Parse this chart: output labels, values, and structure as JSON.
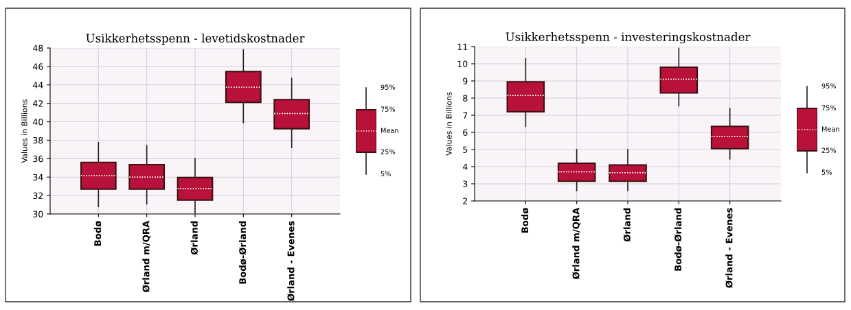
{
  "chart_data": [
    {
      "type": "box",
      "title": "Usikkerhetsspenn - levetidskostnader",
      "ylabel": "Values in Billions",
      "categories": [
        "Bodø",
        "Ørland m/QRA",
        "Ørland",
        "Bodø-Ørland",
        "Ørland - Evenes"
      ],
      "ylim": [
        30,
        48
      ],
      "yticks": [
        30,
        32,
        34,
        36,
        38,
        40,
        42,
        44,
        46,
        48
      ],
      "grid": true,
      "color": "#b8123a",
      "boxes": [
        {
          "low": 30.8,
          "q1": 32.7,
          "median": 34.15,
          "mean": 34.15,
          "q3": 35.6,
          "high": 37.75
        },
        {
          "low": 31.1,
          "q1": 32.7,
          "median": 34.0,
          "mean": 34.0,
          "q3": 35.35,
          "high": 37.4
        },
        {
          "low": 30.1,
          "q1": 31.5,
          "median": 32.75,
          "mean": 32.75,
          "q3": 33.95,
          "high": 36.0
        },
        {
          "low": 39.9,
          "q1": 42.1,
          "median": 43.75,
          "mean": 43.75,
          "q3": 45.45,
          "high": 47.8
        },
        {
          "low": 37.2,
          "q1": 39.25,
          "median": 40.9,
          "mean": 40.9,
          "q3": 42.4,
          "high": 44.7
        }
      ],
      "annotations": [
        "95%",
        "75%",
        "Mean",
        "25%",
        "5%"
      ]
    },
    {
      "type": "box",
      "title": "Usikkerhetsspenn - investeringskostnader",
      "ylabel": "Values in Billions",
      "categories": [
        "Bodø",
        "Ørland m/QRA",
        "Ørland",
        "Bodø-Ørland",
        "Ørland - Evenes"
      ],
      "ylim": [
        2,
        11
      ],
      "yticks": [
        2,
        3,
        4,
        5,
        6,
        7,
        8,
        9,
        10,
        11
      ],
      "grid": true,
      "color": "#b8123a",
      "boxes": [
        {
          "low": 6.35,
          "q1": 7.2,
          "median": 8.15,
          "mean": 8.15,
          "q3": 8.95,
          "high": 10.3
        },
        {
          "low": 2.6,
          "q1": 3.15,
          "median": 3.7,
          "mean": 3.7,
          "q3": 4.2,
          "high": 5.0
        },
        {
          "low": 2.6,
          "q1": 3.15,
          "median": 3.65,
          "mean": 3.65,
          "q3": 4.1,
          "high": 5.0
        },
        {
          "low": 7.55,
          "q1": 8.3,
          "median": 9.1,
          "mean": 9.1,
          "q3": 9.8,
          "high": 10.9
        },
        {
          "low": 4.45,
          "q1": 5.05,
          "median": 5.75,
          "mean": 5.75,
          "q3": 6.35,
          "high": 7.4
        }
      ],
      "annotations": [
        "95%",
        "75%",
        "Mean",
        "25%",
        "5%"
      ]
    }
  ]
}
